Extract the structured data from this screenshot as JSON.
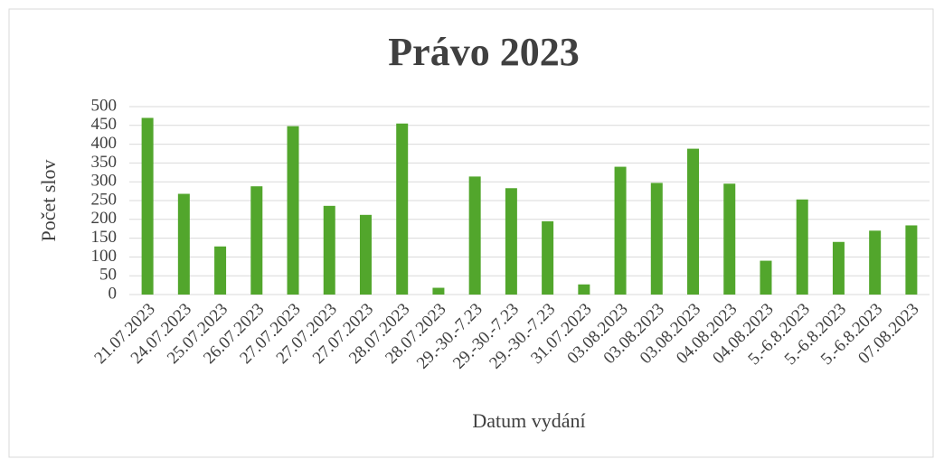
{
  "chart_data": {
    "type": "bar",
    "title": "Právo 2023",
    "x_label": "Datum vydání",
    "y_label": "Počet slov",
    "categories": [
      "21.07.2023",
      "24.07.2023",
      "25.07.2023",
      "26.07.2023",
      "27.07.2023",
      "27.07.2023",
      "27.07.2023",
      "28.07.2023",
      "28.07.2023",
      "29.-30.-7.23",
      "29.-30.-7.23",
      "29.-30.-7.23",
      "31.07.2023",
      "03.08.2023",
      "03.08.2023",
      "03.08.2023",
      "04.08.2023",
      "04.08.2023",
      "5.-6.8.2023",
      "5.-6.8.2023",
      "5.-6.8.2023",
      "07.08.2023"
    ],
    "values": [
      470,
      268,
      128,
      288,
      448,
      236,
      212,
      455,
      18,
      314,
      283,
      195,
      27,
      340,
      297,
      388,
      295,
      90,
      253,
      140,
      170,
      184
    ],
    "color": "#52a62c",
    "ylim": [
      0,
      500
    ],
    "yticks": [
      0,
      50,
      100,
      150,
      200,
      250,
      300,
      350,
      400,
      450,
      500
    ],
    "grid": true
  }
}
